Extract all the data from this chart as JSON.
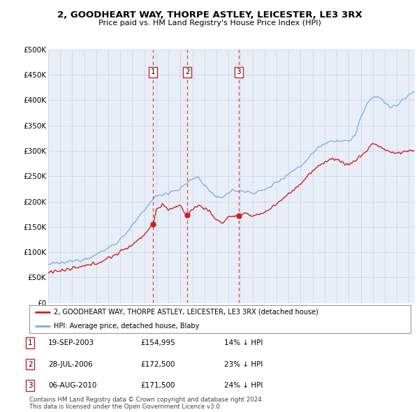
{
  "title1": "2, GOODHEART WAY, THORPE ASTLEY, LEICESTER, LE3 3RX",
  "title2": "Price paid vs. HM Land Registry's House Price Index (HPI)",
  "bg_color": "#ffffff",
  "plot_bg": "#e8eef8",
  "ylabel_ticks": [
    "£0",
    "£50K",
    "£100K",
    "£150K",
    "£200K",
    "£250K",
    "£300K",
    "£350K",
    "£400K",
    "£450K",
    "£500K"
  ],
  "ytick_values": [
    0,
    50000,
    100000,
    150000,
    200000,
    250000,
    300000,
    350000,
    400000,
    450000,
    500000
  ],
  "xlim_start": 1995.0,
  "xlim_end": 2025.5,
  "ylim_min": 0,
  "ylim_max": 500000,
  "sale_dates": [
    2003.72,
    2006.57,
    2010.84
  ],
  "sale_prices": [
    154995,
    172500,
    171500
  ],
  "sale_labels": [
    "1",
    "2",
    "3"
  ],
  "table_rows": [
    [
      "1",
      "19-SEP-2003",
      "£154,995",
      "14% ↓ HPI"
    ],
    [
      "2",
      "28-JUL-2006",
      "£172,500",
      "23% ↓ HPI"
    ],
    [
      "3",
      "06-AUG-2010",
      "£171,500",
      "24% ↓ HPI"
    ]
  ],
  "footer": "Contains HM Land Registry data © Crown copyright and database right 2024.\nThis data is licensed under the Open Government Licence v3.0.",
  "hpi_color": "#7aaadd",
  "price_color": "#cc2222",
  "vline_color": "#dd2222",
  "marker_color": "#cc2222",
  "hpi_anchors_x": [
    1995.0,
    1996.0,
    1997.0,
    1998.0,
    1999.0,
    2000.0,
    2001.0,
    2002.0,
    2003.0,
    2003.5,
    2004.0,
    2005.0,
    2006.0,
    2007.0,
    2007.5,
    2008.0,
    2008.5,
    2009.0,
    2009.5,
    2010.0,
    2010.5,
    2011.0,
    2012.0,
    2013.0,
    2014.0,
    2015.0,
    2016.0,
    2017.0,
    2017.5,
    2018.0,
    2018.5,
    2019.0,
    2020.0,
    2020.5,
    2021.0,
    2021.5,
    2022.0,
    2022.5,
    2023.0,
    2023.5,
    2024.0,
    2024.5,
    2025.3
  ],
  "hpi_anchors_y": [
    76000,
    78000,
    82000,
    87000,
    95000,
    108000,
    125000,
    152000,
    182000,
    200000,
    210000,
    218000,
    225000,
    245000,
    248000,
    232000,
    220000,
    205000,
    210000,
    218000,
    222000,
    220000,
    218000,
    222000,
    238000,
    255000,
    270000,
    295000,
    308000,
    315000,
    320000,
    320000,
    318000,
    330000,
    365000,
    390000,
    405000,
    408000,
    395000,
    385000,
    390000,
    400000,
    415000
  ],
  "price_anchors_x": [
    1995.0,
    1996.0,
    1997.0,
    1998.0,
    1999.0,
    2000.0,
    2001.0,
    2002.0,
    2003.0,
    2003.72,
    2004.0,
    2004.5,
    2005.0,
    2005.5,
    2006.0,
    2006.57,
    2007.0,
    2007.5,
    2008.0,
    2008.5,
    2009.0,
    2009.5,
    2010.0,
    2010.84,
    2011.0,
    2011.5,
    2012.0,
    2013.0,
    2014.0,
    2015.0,
    2016.0,
    2017.0,
    2018.0,
    2018.5,
    2019.0,
    2020.0,
    2020.5,
    2021.0,
    2021.5,
    2022.0,
    2022.5,
    2023.0,
    2023.5,
    2024.0,
    2025.0
  ],
  "price_anchors_y": [
    62000,
    63000,
    67000,
    72000,
    78000,
    88000,
    100000,
    115000,
    135000,
    154995,
    185000,
    193000,
    185000,
    188000,
    190000,
    172500,
    185000,
    192000,
    188000,
    178000,
    163000,
    158000,
    170000,
    171500,
    173000,
    175000,
    172000,
    178000,
    195000,
    215000,
    235000,
    260000,
    278000,
    285000,
    282000,
    272000,
    280000,
    290000,
    300000,
    315000,
    310000,
    302000,
    297000,
    295000,
    300000
  ]
}
